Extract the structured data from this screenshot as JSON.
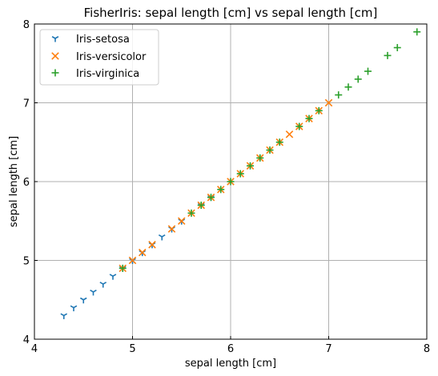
{
  "chart_data": {
    "type": "scatter",
    "title": "FisherIris: sepal length [cm] vs sepal length [cm]",
    "xlabel": "sepal length [cm]",
    "ylabel": "sepal length [cm]",
    "xlim": [
      4,
      8
    ],
    "ylim": [
      4,
      8
    ],
    "xticks": [
      "4",
      "5",
      "6",
      "7",
      "8"
    ],
    "yticks": [
      "4",
      "5",
      "6",
      "7",
      "8"
    ],
    "grid": true,
    "legend_position": "upper-left",
    "series": [
      {
        "name": "Iris-setosa",
        "marker": "tri-down",
        "color": "#1f77b4",
        "x": [
          4.3,
          4.4,
          4.5,
          4.6,
          4.7,
          4.8,
          4.9,
          5.0,
          5.1,
          5.2,
          5.3,
          5.4,
          5.5,
          5.7,
          5.8
        ],
        "y": [
          4.3,
          4.4,
          4.5,
          4.6,
          4.7,
          4.8,
          4.9,
          5.0,
          5.1,
          5.2,
          5.3,
          5.4,
          5.5,
          5.7,
          5.8
        ]
      },
      {
        "name": "Iris-versicolor",
        "marker": "x",
        "color": "#ff7f0e",
        "x": [
          4.9,
          5.0,
          5.1,
          5.2,
          5.4,
          5.5,
          5.6,
          5.7,
          5.8,
          5.9,
          6.0,
          6.1,
          6.2,
          6.3,
          6.4,
          6.5,
          6.6,
          6.7,
          6.8,
          6.9,
          7.0
        ],
        "y": [
          4.9,
          5.0,
          5.1,
          5.2,
          5.4,
          5.5,
          5.6,
          5.7,
          5.8,
          5.9,
          6.0,
          6.1,
          6.2,
          6.3,
          6.4,
          6.5,
          6.6,
          6.7,
          6.8,
          6.9,
          7.0
        ]
      },
      {
        "name": "Iris-virginica",
        "marker": "plus",
        "color": "#2ca02c",
        "x": [
          4.9,
          5.6,
          5.7,
          5.8,
          5.9,
          6.0,
          6.1,
          6.2,
          6.3,
          6.4,
          6.5,
          6.7,
          6.8,
          6.9,
          7.1,
          7.2,
          7.3,
          7.4,
          7.6,
          7.7,
          7.9
        ],
        "y": [
          4.9,
          5.6,
          5.7,
          5.8,
          5.9,
          6.0,
          6.1,
          6.2,
          6.3,
          6.4,
          6.5,
          6.7,
          6.8,
          6.9,
          7.1,
          7.2,
          7.3,
          7.4,
          7.6,
          7.7,
          7.9
        ]
      }
    ]
  }
}
